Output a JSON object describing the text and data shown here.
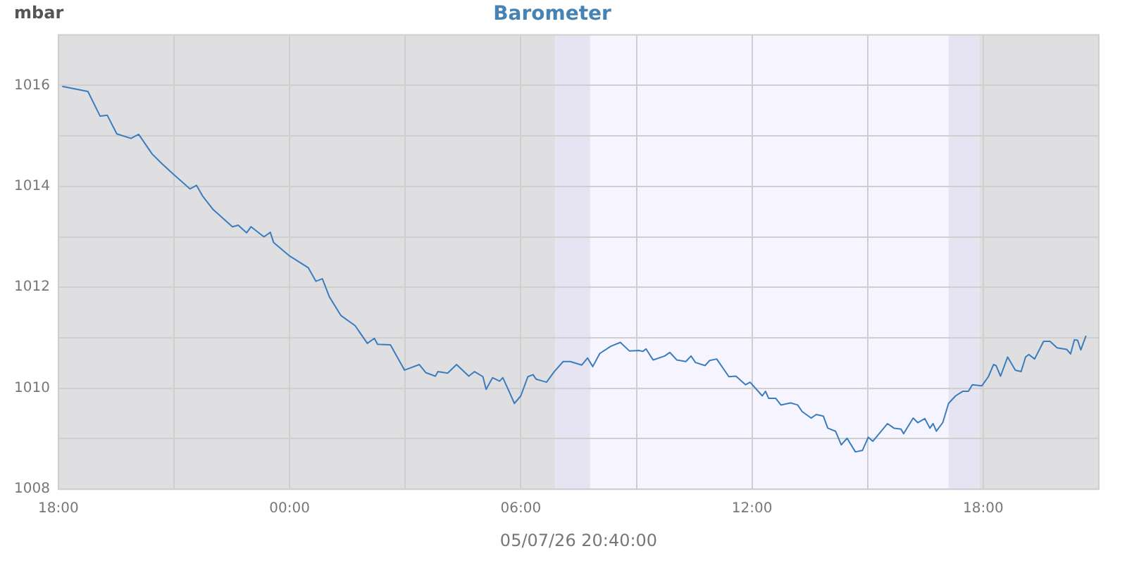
{
  "chart_data": {
    "type": "line",
    "title": "Barometer",
    "xlabel": "05/07/26 20:40:00",
    "ylabel": "mbar",
    "x": [
      "--05-06T18:06",
      "--05-06T18:46",
      "--05-06T19:05",
      "--05-06T19:16",
      "--05-06T19:31",
      "--05-06T19:53",
      "--05-06T20:05",
      "--05-06T20:26",
      "--05-06T20:42",
      "--05-06T20:59",
      "--05-06T21:25",
      "--05-06T21:35",
      "--05-06T21:45",
      "--05-06T22:01",
      "--05-06T22:31",
      "--05-06T22:40",
      "--05-06T22:53",
      "--05-06T23:00",
      "--05-06T23:20",
      "--05-06T23:30",
      "--05-06T23:35",
      "--05-06T23:59",
      "--05-07T00:29",
      "--05-07T00:41",
      "--05-07T00:51",
      "--05-07T01:02",
      "--05-07T01:20",
      "--05-07T01:42",
      "--05-07T02:01",
      "--05-07T02:12",
      "--05-07T02:17",
      "--05-07T02:37",
      "--05-07T02:59",
      "--05-07T03:22",
      "--05-07T03:32",
      "--05-07T03:47",
      "--05-07T03:51",
      "--05-07T04:06",
      "--05-07T04:20",
      "--05-07T04:39",
      "--05-07T04:48",
      "--05-07T05:01",
      "--05-07T05:06",
      "--05-07T05:16",
      "--05-07T05:27",
      "--05-07T05:32",
      "--05-07T05:41",
      "--05-07T05:50",
      "--05-07T06:00",
      "--05-07T06:11",
      "--05-07T06:19",
      "--05-07T06:24",
      "--05-07T06:40",
      "--05-07T06:52",
      "--05-07T07:06",
      "--05-07T07:17",
      "--05-07T07:35",
      "--05-07T07:44",
      "--05-07T07:52",
      "--05-07T08:03",
      "--05-07T08:20",
      "--05-07T08:35",
      "--05-07T08:49",
      "--05-07T09:04",
      "--05-07T09:10",
      "--05-07T09:15",
      "--05-07T09:26",
      "--05-07T09:44",
      "--05-07T09:52",
      "--05-07T10:03",
      "--05-07T10:17",
      "--05-07T10:25",
      "--05-07T10:32",
      "--05-07T10:47",
      "--05-07T10:54",
      "--05-07T11:05",
      "--05-07T11:24",
      "--05-07T11:35",
      "--05-07T11:50",
      "--05-07T11:57",
      "--05-07T12:16",
      "--05-07T12:21",
      "--05-07T12:26",
      "--05-07T12:37",
      "--05-07T12:45",
      "--05-07T13:00",
      "--05-07T13:11",
      "--05-07T13:18",
      "--05-07T13:32",
      "--05-07T13:40",
      "--05-07T13:51",
      "--05-07T13:58",
      "--05-07T14:10",
      "--05-07T14:19",
      "--05-07T14:28",
      "--05-07T14:41",
      "--05-07T14:52",
      "--05-07T15:01",
      "--05-07T15:08",
      "--05-07T15:31",
      "--05-07T15:41",
      "--05-07T15:52",
      "--05-07T15:56",
      "--05-07T16:11",
      "--05-07T16:18",
      "--05-07T16:29",
      "--05-07T16:37",
      "--05-07T16:42",
      "--05-07T16:47",
      "--05-07T16:57",
      "--05-07T17:06",
      "--05-07T17:17",
      "--05-07T17:28",
      "--05-07T17:37",
      "--05-07T17:43",
      "--05-07T17:58",
      "--05-07T18:08",
      "--05-07T18:16",
      "--05-07T18:20",
      "--05-07T18:27",
      "--05-07T18:38",
      "--05-07T18:50",
      "--05-07T18:59",
      "--05-07T19:06",
      "--05-07T19:11",
      "--05-07T19:20",
      "--05-07T19:34",
      "--05-07T19:44",
      "--05-07T19:55",
      "--05-07T20:10",
      "--05-07T20:16",
      "--05-07T20:22",
      "--05-07T20:27",
      "--05-07T20:32",
      "--05-07T20:40"
    ],
    "series": [
      {
        "color": "#3a7dbf",
        "values": [
          1015.98,
          1015.88,
          1015.39,
          1015.41,
          1015.04,
          1014.95,
          1015.03,
          1014.64,
          1014.44,
          1014.24,
          1013.95,
          1014.02,
          1013.8,
          1013.54,
          1013.2,
          1013.23,
          1013.08,
          1013.2,
          1013.0,
          1013.09,
          1012.89,
          1012.63,
          1012.39,
          1012.12,
          1012.17,
          1011.81,
          1011.44,
          1011.24,
          1010.89,
          1010.99,
          1010.87,
          1010.86,
          1010.36,
          1010.47,
          1010.31,
          1010.24,
          1010.33,
          1010.3,
          1010.47,
          1010.24,
          1010.33,
          1010.23,
          1009.98,
          1010.21,
          1010.14,
          1010.21,
          1009.96,
          1009.7,
          1009.85,
          1010.23,
          1010.27,
          1010.18,
          1010.12,
          1010.33,
          1010.53,
          1010.53,
          1010.46,
          1010.6,
          1010.43,
          1010.69,
          1010.83,
          1010.91,
          1010.74,
          1010.75,
          1010.73,
          1010.78,
          1010.56,
          1010.64,
          1010.71,
          1010.56,
          1010.53,
          1010.64,
          1010.51,
          1010.45,
          1010.55,
          1010.58,
          1010.23,
          1010.24,
          1010.07,
          1010.12,
          1009.85,
          1009.94,
          1009.8,
          1009.8,
          1009.67,
          1009.71,
          1009.67,
          1009.54,
          1009.41,
          1009.48,
          1009.45,
          1009.21,
          1009.15,
          1008.88,
          1009.01,
          1008.74,
          1008.77,
          1009.03,
          1008.95,
          1009.3,
          1009.21,
          1009.19,
          1009.1,
          1009.41,
          1009.32,
          1009.4,
          1009.21,
          1009.3,
          1009.15,
          1009.32,
          1009.7,
          1009.85,
          1009.94,
          1009.94,
          1010.07,
          1010.05,
          1010.23,
          1010.47,
          1010.45,
          1010.24,
          1010.62,
          1010.36,
          1010.33,
          1010.62,
          1010.67,
          1010.58,
          1010.93,
          1010.93,
          1010.8,
          1010.77,
          1010.68,
          1010.96,
          1010.95,
          1010.76,
          1011.04
        ]
      }
    ],
    "xlim": [
      "--05-06T18:00",
      "--05-07T21:00"
    ],
    "xticks": [
      {
        "value": "--05-06T18:00",
        "label": "18:00"
      },
      {
        "value": "--05-06T21:00",
        "label": null
      },
      {
        "value": "--05-07T00:00",
        "label": "00:00"
      },
      {
        "value": "--05-07T03:00",
        "label": null
      },
      {
        "value": "--05-07T06:00",
        "label": "06:00"
      },
      {
        "value": "--05-07T09:00",
        "label": null
      },
      {
        "value": "--05-07T12:00",
        "label": "12:00"
      },
      {
        "value": "--05-07T15:00",
        "label": null
      },
      {
        "value": "--05-07T18:00",
        "label": "18:00"
      }
    ],
    "ylim": [
      1008,
      1017
    ],
    "yticks": [
      1008,
      {
        "value": 1009,
        "label": null
      },
      1010,
      {
        "value": 1011,
        "label": null
      },
      1012,
      {
        "value": 1013,
        "label": null
      },
      1014,
      {
        "value": 1015,
        "label": null
      },
      1016
    ],
    "bands": [
      {
        "axis": "x",
        "from": "--05-06T18:00",
        "to": "--05-07T06:54",
        "color": "#dfdfe1"
      },
      {
        "axis": "x",
        "from": "--05-07T06:54",
        "to": "--05-07T07:48",
        "color": "#e6e3f2"
      },
      {
        "axis": "x",
        "from": "--05-07T07:48",
        "to": "--05-07T17:06",
        "color": "#f6f4ff"
      },
      {
        "axis": "x",
        "from": "--05-07T17:06",
        "to": "--05-07T17:54",
        "color": "#e6e3f2"
      },
      {
        "axis": "x",
        "from": "--05-07T17:54",
        "to": "--05-07T21:00",
        "color": "#dfdfe1"
      }
    ],
    "grid": true,
    "legend": false,
    "marker": "none",
    "line_style": "solid"
  }
}
